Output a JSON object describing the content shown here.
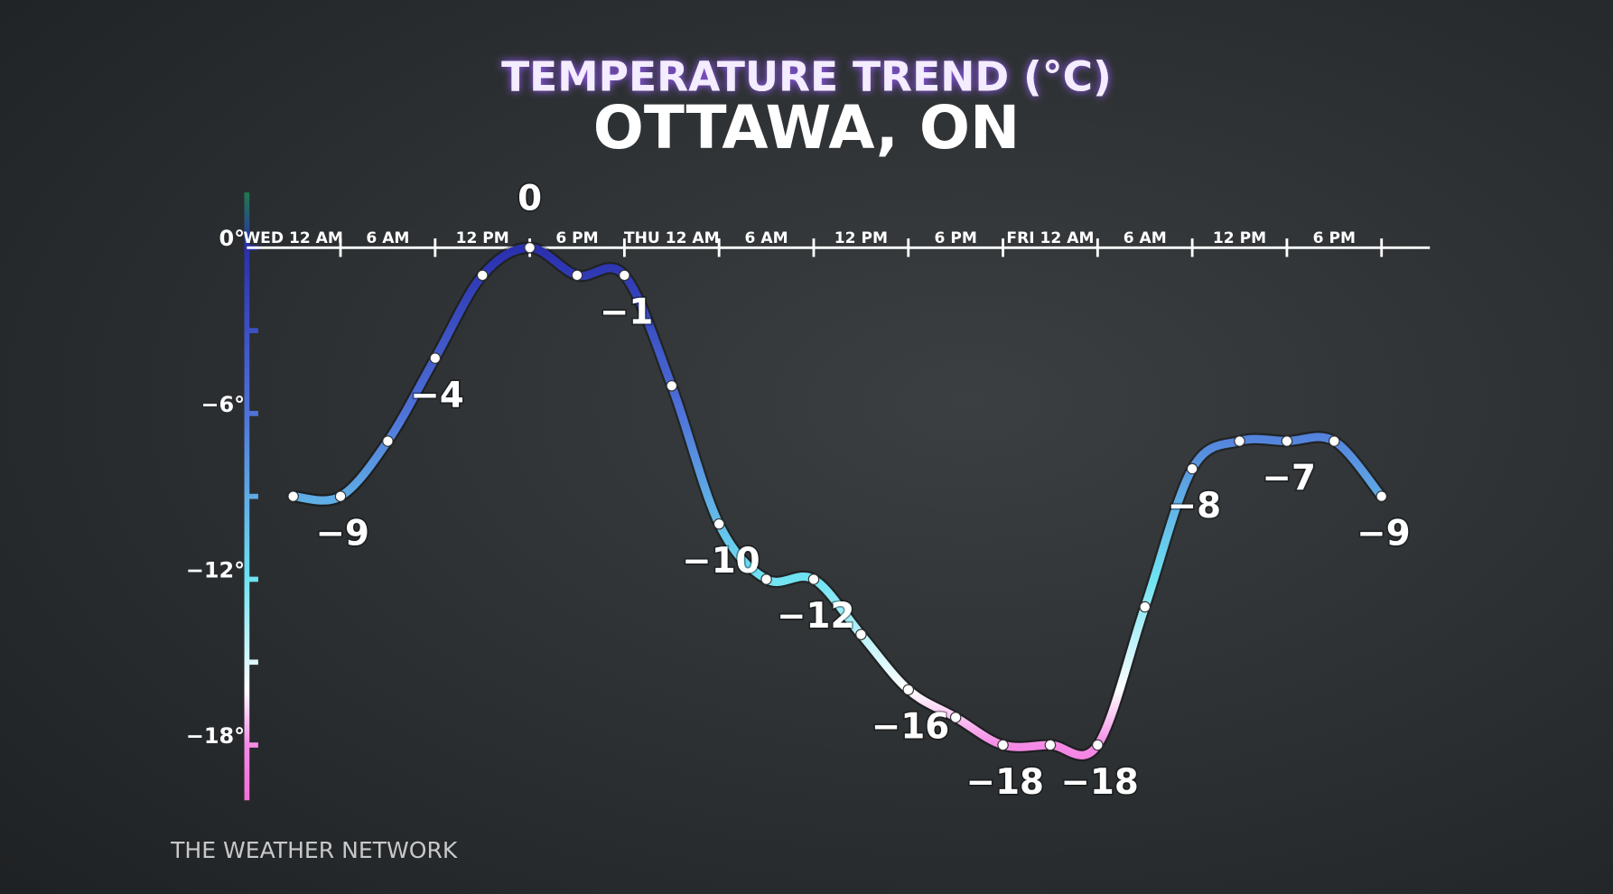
{
  "chart_data": {
    "type": "line",
    "title": "TEMPERATURE TREND (°C)",
    "subtitle": "OTTAWA, ON",
    "source": "THE WEATHER NETWORK",
    "categories": [
      "WED 12 AM",
      null,
      "6 AM",
      null,
      "12 PM",
      null,
      "6 PM",
      null,
      "THU 12 AM",
      null,
      "6 AM",
      null,
      "12 PM",
      null,
      "6 PM",
      null,
      "FRI 12 AM",
      null,
      "6 AM",
      null,
      "12 PM",
      null,
      "6 PM",
      null
    ],
    "values": [
      -9,
      -9,
      -7,
      -4,
      -1,
      0,
      -1,
      -1,
      -5,
      -10,
      -12,
      -12,
      -14,
      -16,
      -17,
      -18,
      -18,
      -18,
      -13,
      -8,
      -7,
      -7,
      -7,
      -9
    ],
    "value_labels": [
      null,
      "-9",
      null,
      "-4",
      null,
      "0",
      null,
      "-1",
      null,
      "-10",
      null,
      "-12",
      null,
      "-16",
      null,
      "-18",
      null,
      "-18",
      null,
      "-8",
      null,
      "-7",
      null,
      "-9"
    ],
    "ylim": [
      -20,
      2
    ],
    "yticks": [
      {
        "value": 0,
        "label": "0°"
      },
      {
        "value": -6,
        "label": "-6°"
      },
      {
        "value": -12,
        "label": "-12°"
      },
      {
        "value": -18,
        "label": "-18°"
      }
    ],
    "minor_yticks": [
      -3,
      -9,
      -15
    ],
    "color_stops": [
      {
        "value": 2,
        "color": "#1f7a4d"
      },
      {
        "value": 0,
        "color": "#2a2fae"
      },
      {
        "value": -6,
        "color": "#4f73d9"
      },
      {
        "value": -12,
        "color": "#6fe3f2"
      },
      {
        "value": -16,
        "color": "#ffffff"
      },
      {
        "value": -18,
        "color": "#f58ae6"
      },
      {
        "value": -20,
        "color": "#f070d8"
      }
    ]
  }
}
